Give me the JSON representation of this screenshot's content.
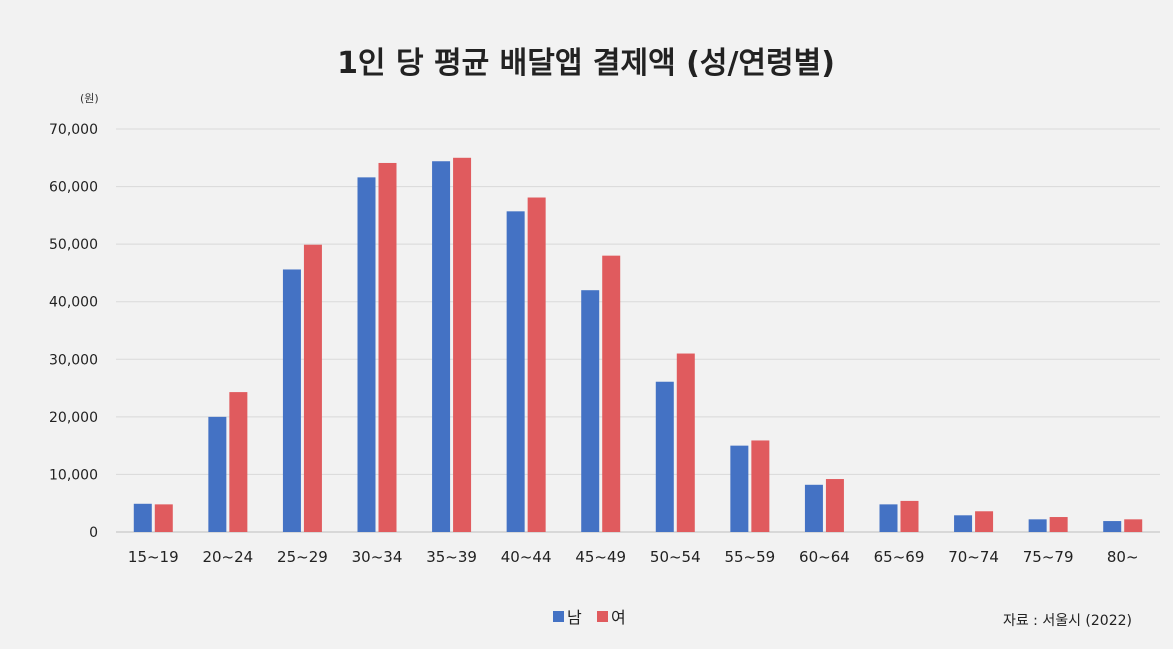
{
  "chart_data": {
    "type": "bar",
    "title": "1인 당 평균 배달앱 결제액 (성/연령별)",
    "ylabel": "(원)",
    "xlabel": "",
    "ylim": [
      0,
      70000
    ],
    "yticks": [
      "0",
      "10,000",
      "20,000",
      "30,000",
      "40,000",
      "50,000",
      "60,000",
      "70,000"
    ],
    "categories": [
      "15~19",
      "20~24",
      "25~29",
      "30~34",
      "35~39",
      "40~44",
      "45~49",
      "50~54",
      "55~59",
      "60~64",
      "65~69",
      "70~74",
      "75~79",
      "80~"
    ],
    "series": [
      {
        "name": "남",
        "color": "#4472c4",
        "values": [
          4900,
          20000,
          45600,
          61600,
          64400,
          55700,
          42000,
          26100,
          15000,
          8200,
          4800,
          2900,
          2200,
          1900
        ]
      },
      {
        "name": "여",
        "color": "#e05b5e",
        "values": [
          4800,
          24300,
          49900,
          64100,
          65000,
          58100,
          48000,
          31000,
          15900,
          9200,
          5400,
          3600,
          2600,
          2200
        ]
      }
    ],
    "grid": true,
    "legend_position": "bottom-center",
    "source": "자료 : 서울시 (2022)"
  }
}
